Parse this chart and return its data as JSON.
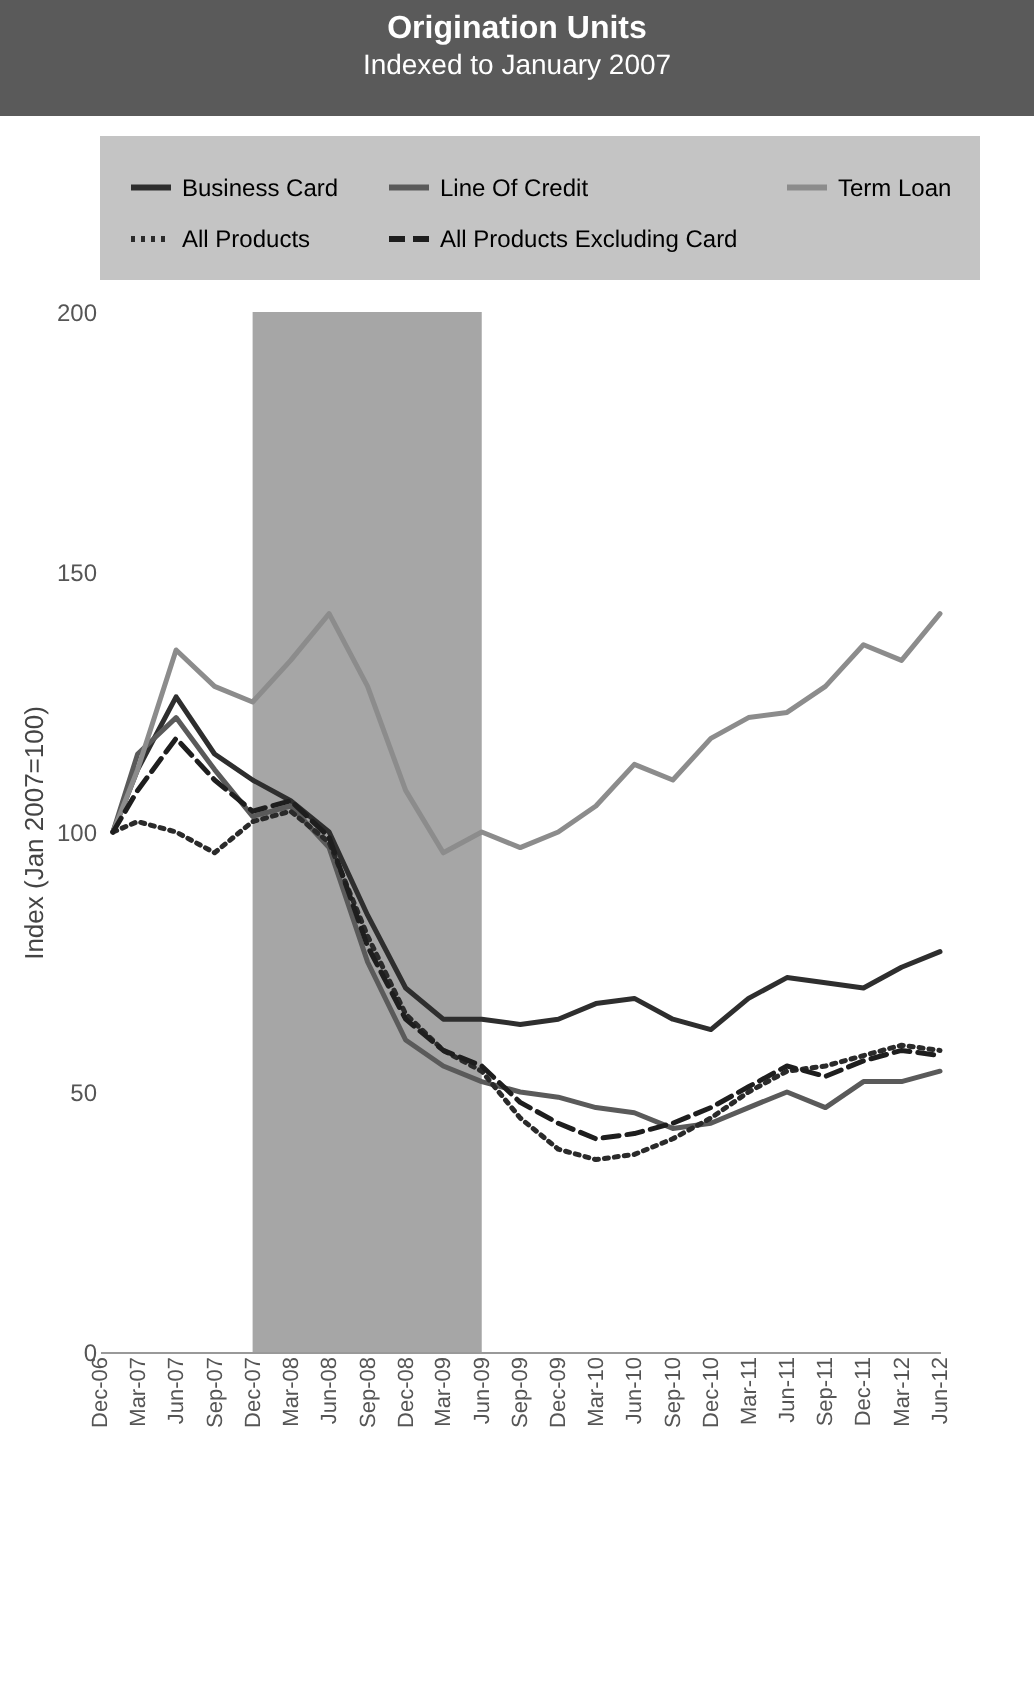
{
  "chart_data": {
    "type": "line",
    "title": "Origination Units",
    "subtitle": "Indexed to January 2007",
    "ylabel": "Index (Jan 2007=100)",
    "x": [
      "2007-01",
      "2007-03",
      "2007-06",
      "2007-09",
      "2007-12",
      "2008-03",
      "2008-06",
      "2008-09",
      "2008-12",
      "2009-03",
      "2009-06",
      "2009-09",
      "2009-12",
      "2010-03",
      "2010-06",
      "2010-09",
      "2010-12",
      "2011-03",
      "2011-06",
      "2011-09",
      "2011-12",
      "2012-03",
      "2012-06"
    ],
    "series": [
      {
        "name": "Business Card",
        "color": "#2e2e2e",
        "line_style": "solid",
        "values": [
          100,
          112,
          126,
          115,
          110,
          106,
          100,
          84,
          70,
          64,
          64,
          63,
          64,
          67,
          68,
          64,
          62,
          68,
          72,
          71,
          70,
          74,
          77
        ]
      },
      {
        "name": "Line Of Credit",
        "color": "#5a5a5a",
        "line_style": "solid",
        "values": [
          100,
          115,
          122,
          112,
          103,
          105,
          97,
          75,
          60,
          55,
          52,
          50,
          49,
          47,
          46,
          43,
          44,
          47,
          50,
          47,
          52,
          52,
          54
        ]
      },
      {
        "name": "Term Loan",
        "color": "#8c8c8c",
        "line_style": "solid",
        "values": [
          100,
          112,
          135,
          128,
          125,
          133,
          142,
          128,
          108,
          96,
          100,
          97,
          100,
          105,
          113,
          110,
          118,
          122,
          123,
          128,
          136,
          133,
          142
        ]
      },
      {
        "name": "All Products",
        "color": "#2a2a2a",
        "line_style": "dotted",
        "values": [
          100,
          102,
          100,
          96,
          102,
          104,
          98,
          80,
          65,
          58,
          54,
          45,
          39,
          37,
          38,
          41,
          45,
          50,
          54,
          55,
          57,
          59,
          58
        ]
      },
      {
        "name": "All Products Excluding Card",
        "color": "#1e1e1e",
        "line_style": "dashed",
        "values": [
          100,
          108,
          118,
          110,
          104,
          106,
          99,
          78,
          64,
          58,
          55,
          48,
          44,
          41,
          42,
          44,
          47,
          51,
          55,
          53,
          56,
          58,
          57
        ]
      }
    ],
    "xlim": [
      "2006-12",
      "2012-06"
    ],
    "xticks": [
      {
        "value": "2006-12",
        "label": "Dec-06"
      },
      {
        "value": "2007-03",
        "label": "Mar-07"
      },
      {
        "value": "2007-06",
        "label": "Jun-07"
      },
      {
        "value": "2007-09",
        "label": "Sep-07"
      },
      {
        "value": "2007-12",
        "label": "Dec-07"
      },
      {
        "value": "2008-03",
        "label": "Mar-08"
      },
      {
        "value": "2008-06",
        "label": "Jun-08"
      },
      {
        "value": "2008-09",
        "label": "Sep-08"
      },
      {
        "value": "2008-12",
        "label": "Dec-08"
      },
      {
        "value": "2009-03",
        "label": "Mar-09"
      },
      {
        "value": "2009-06",
        "label": "Jun-09"
      },
      {
        "value": "2009-09",
        "label": "Sep-09"
      },
      {
        "value": "2009-12",
        "label": "Dec-09"
      },
      {
        "value": "2010-03",
        "label": "Mar-10"
      },
      {
        "value": "2010-06",
        "label": "Jun-10"
      },
      {
        "value": "2010-09",
        "label": "Sep-10"
      },
      {
        "value": "2010-12",
        "label": "Dec-10"
      },
      {
        "value": "2011-03",
        "label": "Mar-11"
      },
      {
        "value": "2011-06",
        "label": "Jun-11"
      },
      {
        "value": "2011-09",
        "label": "Sep-11"
      },
      {
        "value": "2011-12",
        "label": "Dec-11"
      },
      {
        "value": "2012-03",
        "label": "Mar-12"
      },
      {
        "value": "2012-06",
        "label": "Jun-12"
      }
    ],
    "ylim": [
      0,
      200
    ],
    "yticks": [
      0,
      50,
      100,
      150,
      200
    ],
    "bands": [
      {
        "axis": "x",
        "from": "2007-12",
        "to": "2009-06",
        "color": "#a6a6a6"
      }
    ],
    "legend": "top",
    "grid": false
  }
}
